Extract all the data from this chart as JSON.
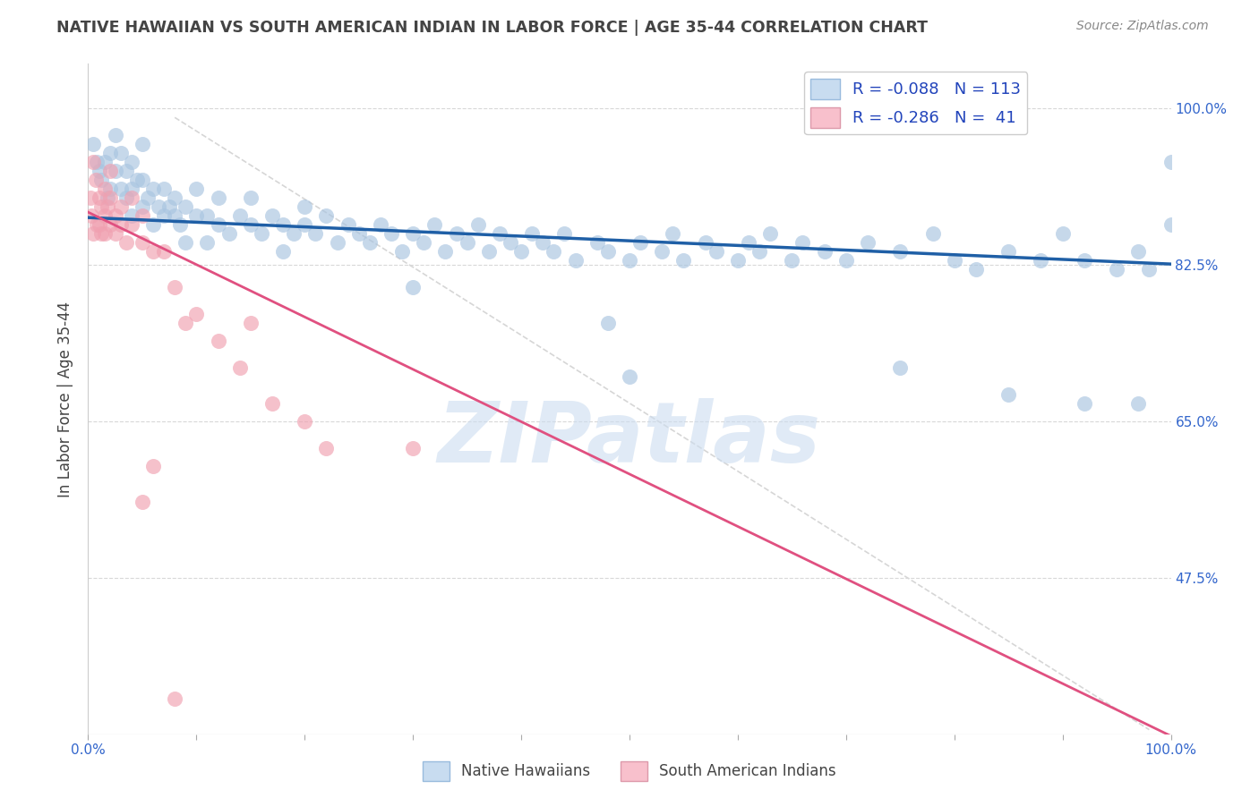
{
  "title": "NATIVE HAWAIIAN VS SOUTH AMERICAN INDIAN IN LABOR FORCE | AGE 35-44 CORRELATION CHART",
  "source": "Source: ZipAtlas.com",
  "ylabel": "In Labor Force | Age 35-44",
  "xlim": [
    0.0,
    1.0
  ],
  "ylim": [
    0.3,
    1.05
  ],
  "yticks": [
    0.475,
    0.65,
    0.825,
    1.0
  ],
  "ytick_labels": [
    "47.5%",
    "65.0%",
    "82.5%",
    "100.0%"
  ],
  "xticks": [
    0.0,
    0.1,
    0.2,
    0.3,
    0.4,
    0.5,
    0.6,
    0.7,
    0.8,
    0.9,
    1.0
  ],
  "xtick_labels": [
    "0.0%",
    "",
    "",
    "",
    "",
    "",
    "",
    "",
    "",
    "",
    "100.0%"
  ],
  "blue_R": -0.088,
  "blue_N": 113,
  "pink_R": -0.286,
  "pink_N": 41,
  "blue_color": "#a8c4e0",
  "pink_color": "#f0a0b0",
  "blue_line_color": "#1f5fa6",
  "pink_line_color": "#e05080",
  "legend_blue_face": "#c8dcf0",
  "legend_pink_face": "#f8c0cc",
  "watermark_color": "#ccddf0",
  "title_color": "#444444",
  "source_color": "#888888",
  "axis_label_color": "#444444",
  "grid_color": "#d8d8d8",
  "blue_scatter_x": [
    0.005,
    0.008,
    0.01,
    0.012,
    0.015,
    0.018,
    0.02,
    0.02,
    0.025,
    0.025,
    0.03,
    0.03,
    0.035,
    0.035,
    0.04,
    0.04,
    0.04,
    0.045,
    0.05,
    0.05,
    0.05,
    0.055,
    0.06,
    0.06,
    0.065,
    0.07,
    0.07,
    0.075,
    0.08,
    0.08,
    0.085,
    0.09,
    0.09,
    0.1,
    0.1,
    0.11,
    0.11,
    0.12,
    0.12,
    0.13,
    0.14,
    0.15,
    0.15,
    0.16,
    0.17,
    0.18,
    0.18,
    0.19,
    0.2,
    0.2,
    0.21,
    0.22,
    0.23,
    0.24,
    0.25,
    0.26,
    0.27,
    0.28,
    0.29,
    0.3,
    0.31,
    0.32,
    0.33,
    0.34,
    0.35,
    0.36,
    0.37,
    0.38,
    0.39,
    0.4,
    0.41,
    0.42,
    0.43,
    0.44,
    0.45,
    0.47,
    0.48,
    0.5,
    0.51,
    0.53,
    0.54,
    0.55,
    0.57,
    0.58,
    0.6,
    0.61,
    0.62,
    0.63,
    0.65,
    0.66,
    0.68,
    0.7,
    0.72,
    0.75,
    0.78,
    0.8,
    0.82,
    0.85,
    0.88,
    0.9,
    0.92,
    0.95,
    0.97,
    0.98,
    1.0,
    1.0,
    0.5,
    0.48,
    0.75,
    0.85,
    0.92,
    0.97,
    0.3
  ],
  "blue_scatter_y": [
    0.96,
    0.94,
    0.93,
    0.92,
    0.94,
    0.9,
    0.91,
    0.95,
    0.93,
    0.97,
    0.91,
    0.95,
    0.9,
    0.93,
    0.91,
    0.94,
    0.88,
    0.92,
    0.89,
    0.92,
    0.96,
    0.9,
    0.91,
    0.87,
    0.89,
    0.88,
    0.91,
    0.89,
    0.88,
    0.9,
    0.87,
    0.89,
    0.85,
    0.88,
    0.91,
    0.88,
    0.85,
    0.87,
    0.9,
    0.86,
    0.88,
    0.87,
    0.9,
    0.86,
    0.88,
    0.87,
    0.84,
    0.86,
    0.87,
    0.89,
    0.86,
    0.88,
    0.85,
    0.87,
    0.86,
    0.85,
    0.87,
    0.86,
    0.84,
    0.86,
    0.85,
    0.87,
    0.84,
    0.86,
    0.85,
    0.87,
    0.84,
    0.86,
    0.85,
    0.84,
    0.86,
    0.85,
    0.84,
    0.86,
    0.83,
    0.85,
    0.84,
    0.83,
    0.85,
    0.84,
    0.86,
    0.83,
    0.85,
    0.84,
    0.83,
    0.85,
    0.84,
    0.86,
    0.83,
    0.85,
    0.84,
    0.83,
    0.85,
    0.84,
    0.86,
    0.83,
    0.82,
    0.84,
    0.83,
    0.86,
    0.83,
    0.82,
    0.84,
    0.82,
    0.94,
    0.87,
    0.7,
    0.76,
    0.71,
    0.68,
    0.67,
    0.67,
    0.8
  ],
  "pink_scatter_x": [
    0.002,
    0.003,
    0.005,
    0.005,
    0.007,
    0.008,
    0.01,
    0.01,
    0.012,
    0.012,
    0.015,
    0.015,
    0.015,
    0.018,
    0.02,
    0.02,
    0.02,
    0.025,
    0.025,
    0.03,
    0.03,
    0.035,
    0.04,
    0.04,
    0.05,
    0.05,
    0.06,
    0.07,
    0.08,
    0.09,
    0.1,
    0.12,
    0.14,
    0.15,
    0.17,
    0.2,
    0.22,
    0.3,
    0.05,
    0.06,
    0.08
  ],
  "pink_scatter_y": [
    0.9,
    0.88,
    0.94,
    0.86,
    0.92,
    0.87,
    0.9,
    0.87,
    0.89,
    0.86,
    0.91,
    0.88,
    0.86,
    0.89,
    0.87,
    0.9,
    0.93,
    0.88,
    0.86,
    0.89,
    0.87,
    0.85,
    0.87,
    0.9,
    0.85,
    0.88,
    0.84,
    0.84,
    0.8,
    0.76,
    0.77,
    0.74,
    0.71,
    0.76,
    0.67,
    0.65,
    0.62,
    0.62,
    0.56,
    0.6,
    0.34
  ],
  "blue_line_x0": 0.0,
  "blue_line_x1": 1.0,
  "blue_line_y0": 0.878,
  "blue_line_y1": 0.826,
  "pink_line_x0": 0.0,
  "pink_line_x1": 1.0,
  "pink_line_y0": 0.884,
  "pink_line_y1": 0.298,
  "diag_line_x0": 0.08,
  "diag_line_x1": 0.98,
  "diag_line_y0": 0.99,
  "diag_line_y1": 0.305
}
